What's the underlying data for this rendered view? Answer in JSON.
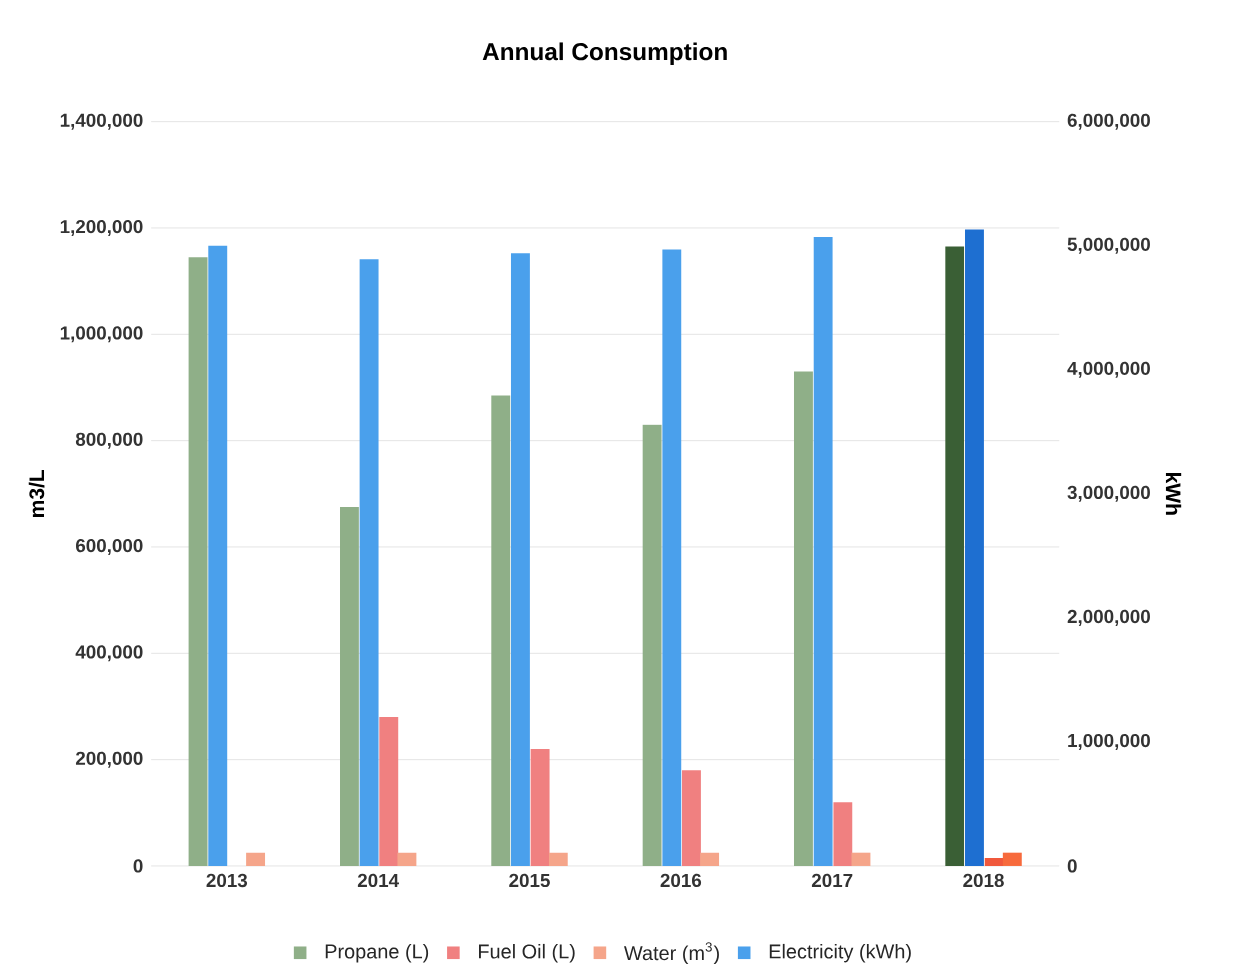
{
  "chart_data": {
    "type": "bar",
    "title": "Annual Consumption",
    "ylabel": "m3/L",
    "y2label": "kWh",
    "categories": [
      "2013",
      "2014",
      "2015",
      "2016",
      "2017",
      "2018"
    ],
    "series": [
      {
        "name": "Propane (L)",
        "color": "#8faf88",
        "colors": [
          "#8faf88",
          "#8faf88",
          "#8faf88",
          "#8faf88",
          "#8faf88",
          "#3a5f35"
        ],
        "values": [
          1145000,
          675000,
          885000,
          830000,
          930000,
          1165000
        ]
      },
      {
        "name": "Fuel Oil (L)",
        "color": "#f08080",
        "colors": [
          "#f08080",
          "#f08080",
          "#f08080",
          "#f08080",
          "#f08080",
          "#f0583c"
        ],
        "values": [
          null,
          280000,
          220000,
          180000,
          120000,
          15000
        ]
      },
      {
        "name": "Water (m$^{3}$)",
        "color": "#f5a58a",
        "colors": [
          "#f5a58a",
          "#f5a58a",
          "#f5a58a",
          "#f5a58a",
          "#f5a58a",
          "#f76a3c"
        ],
        "values": [
          25000,
          25000,
          25000,
          25000,
          25000,
          25000
        ]
      },
      {
        "name": "Electricity (kWh)",
        "color": "#4aa0ec",
        "colors": [
          "#4aa0ec",
          "#4aa0ec",
          "#4aa0ec",
          "#4aa0ec",
          "#4aa0ec",
          "#1e6fd1"
        ],
        "axis": "y2",
        "values": [
          5000000,
          4890000,
          4940000,
          4970000,
          5070000,
          5130000
        ]
      }
    ],
    "ylim": [
      0,
      1400000
    ],
    "yticks": [
      0,
      {
        "value": 200000,
        "label": "200,000"
      },
      {
        "value": 400000,
        "label": "400,000"
      },
      {
        "value": 600000,
        "label": "600,000"
      },
      {
        "value": 800000,
        "label": "800,000"
      },
      {
        "value": 1000000,
        "label": "1,000,000"
      },
      {
        "value": 1200000,
        "label": "1,200,000"
      },
      {
        "value": 1400000,
        "label": "1,400,000"
      }
    ],
    "y2lim": [
      0,
      6000000
    ],
    "y2ticks": [
      0,
      {
        "value": 1000000,
        "label": "1,000,000"
      },
      {
        "value": 2000000,
        "label": "2,000,000"
      },
      {
        "value": 3000000,
        "label": "3,000,000"
      },
      {
        "value": 4000000,
        "label": "4,000,000"
      },
      {
        "value": 5000000,
        "label": "5,000,000"
      },
      {
        "value": 6000000,
        "label": "6,000,000"
      }
    ],
    "grid": "y",
    "legend": "bottom"
  }
}
